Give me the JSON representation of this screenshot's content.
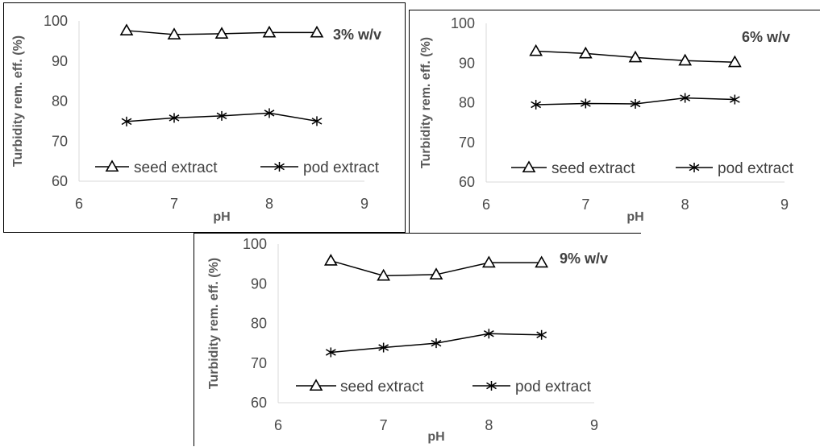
{
  "chart_data": [
    {
      "type": "line",
      "annotation": "3% w/v",
      "xlabel": "pH",
      "ylabel": "Turbidity rem. eff. (%)",
      "xlim": [
        6,
        9
      ],
      "ylim": [
        60,
        100
      ],
      "x_ticks": [
        "6",
        "7",
        "8",
        "9"
      ],
      "y_ticks": [
        "60",
        "70",
        "80",
        "90",
        "100"
      ],
      "x": [
        6.5,
        7,
        7.5,
        8,
        8.5
      ],
      "series": [
        {
          "name": "seed extract",
          "marker": "triangle",
          "values": [
            97.6,
            96.6,
            96.8,
            97.1,
            97.1
          ]
        },
        {
          "name": "pod extract",
          "marker": "asterisk",
          "values": [
            74.9,
            75.8,
            76.3,
            77.0,
            75.0
          ]
        }
      ],
      "legend_position": "bottom"
    },
    {
      "type": "line",
      "annotation": "6% w/v",
      "xlabel": "pH",
      "ylabel": "Turbidity rem. eff. (%)",
      "xlim": [
        6,
        9
      ],
      "ylim": [
        60,
        100
      ],
      "x_ticks": [
        "6",
        "7",
        "8",
        "9"
      ],
      "y_ticks": [
        "60",
        "70",
        "80",
        "90",
        "100"
      ],
      "x": [
        6.5,
        7,
        7.5,
        8,
        8.5
      ],
      "series": [
        {
          "name": "seed extract",
          "marker": "triangle",
          "values": [
            93.0,
            92.4,
            91.4,
            90.6,
            90.2
          ]
        },
        {
          "name": "pod extract",
          "marker": "asterisk",
          "values": [
            79.5,
            79.8,
            79.7,
            81.2,
            80.8
          ]
        }
      ],
      "legend_position": "bottom"
    },
    {
      "type": "line",
      "annotation": "9% w/v",
      "xlabel": "pH",
      "ylabel": "Turbidity rem. eff. (%)",
      "xlim": [
        6,
        9
      ],
      "ylim": [
        60,
        100
      ],
      "x_ticks": [
        "6",
        "7",
        "8",
        "9"
      ],
      "y_ticks": [
        "60",
        "70",
        "80",
        "90",
        "100"
      ],
      "x": [
        6.5,
        7,
        7.5,
        8,
        8.5
      ],
      "series": [
        {
          "name": "seed extract",
          "marker": "triangle",
          "values": [
            95.8,
            92.0,
            92.3,
            95.3,
            95.3
          ]
        },
        {
          "name": "pod extract",
          "marker": "asterisk",
          "values": [
            72.7,
            73.9,
            75.0,
            77.4,
            77.1
          ]
        }
      ],
      "legend_position": "bottom"
    }
  ]
}
